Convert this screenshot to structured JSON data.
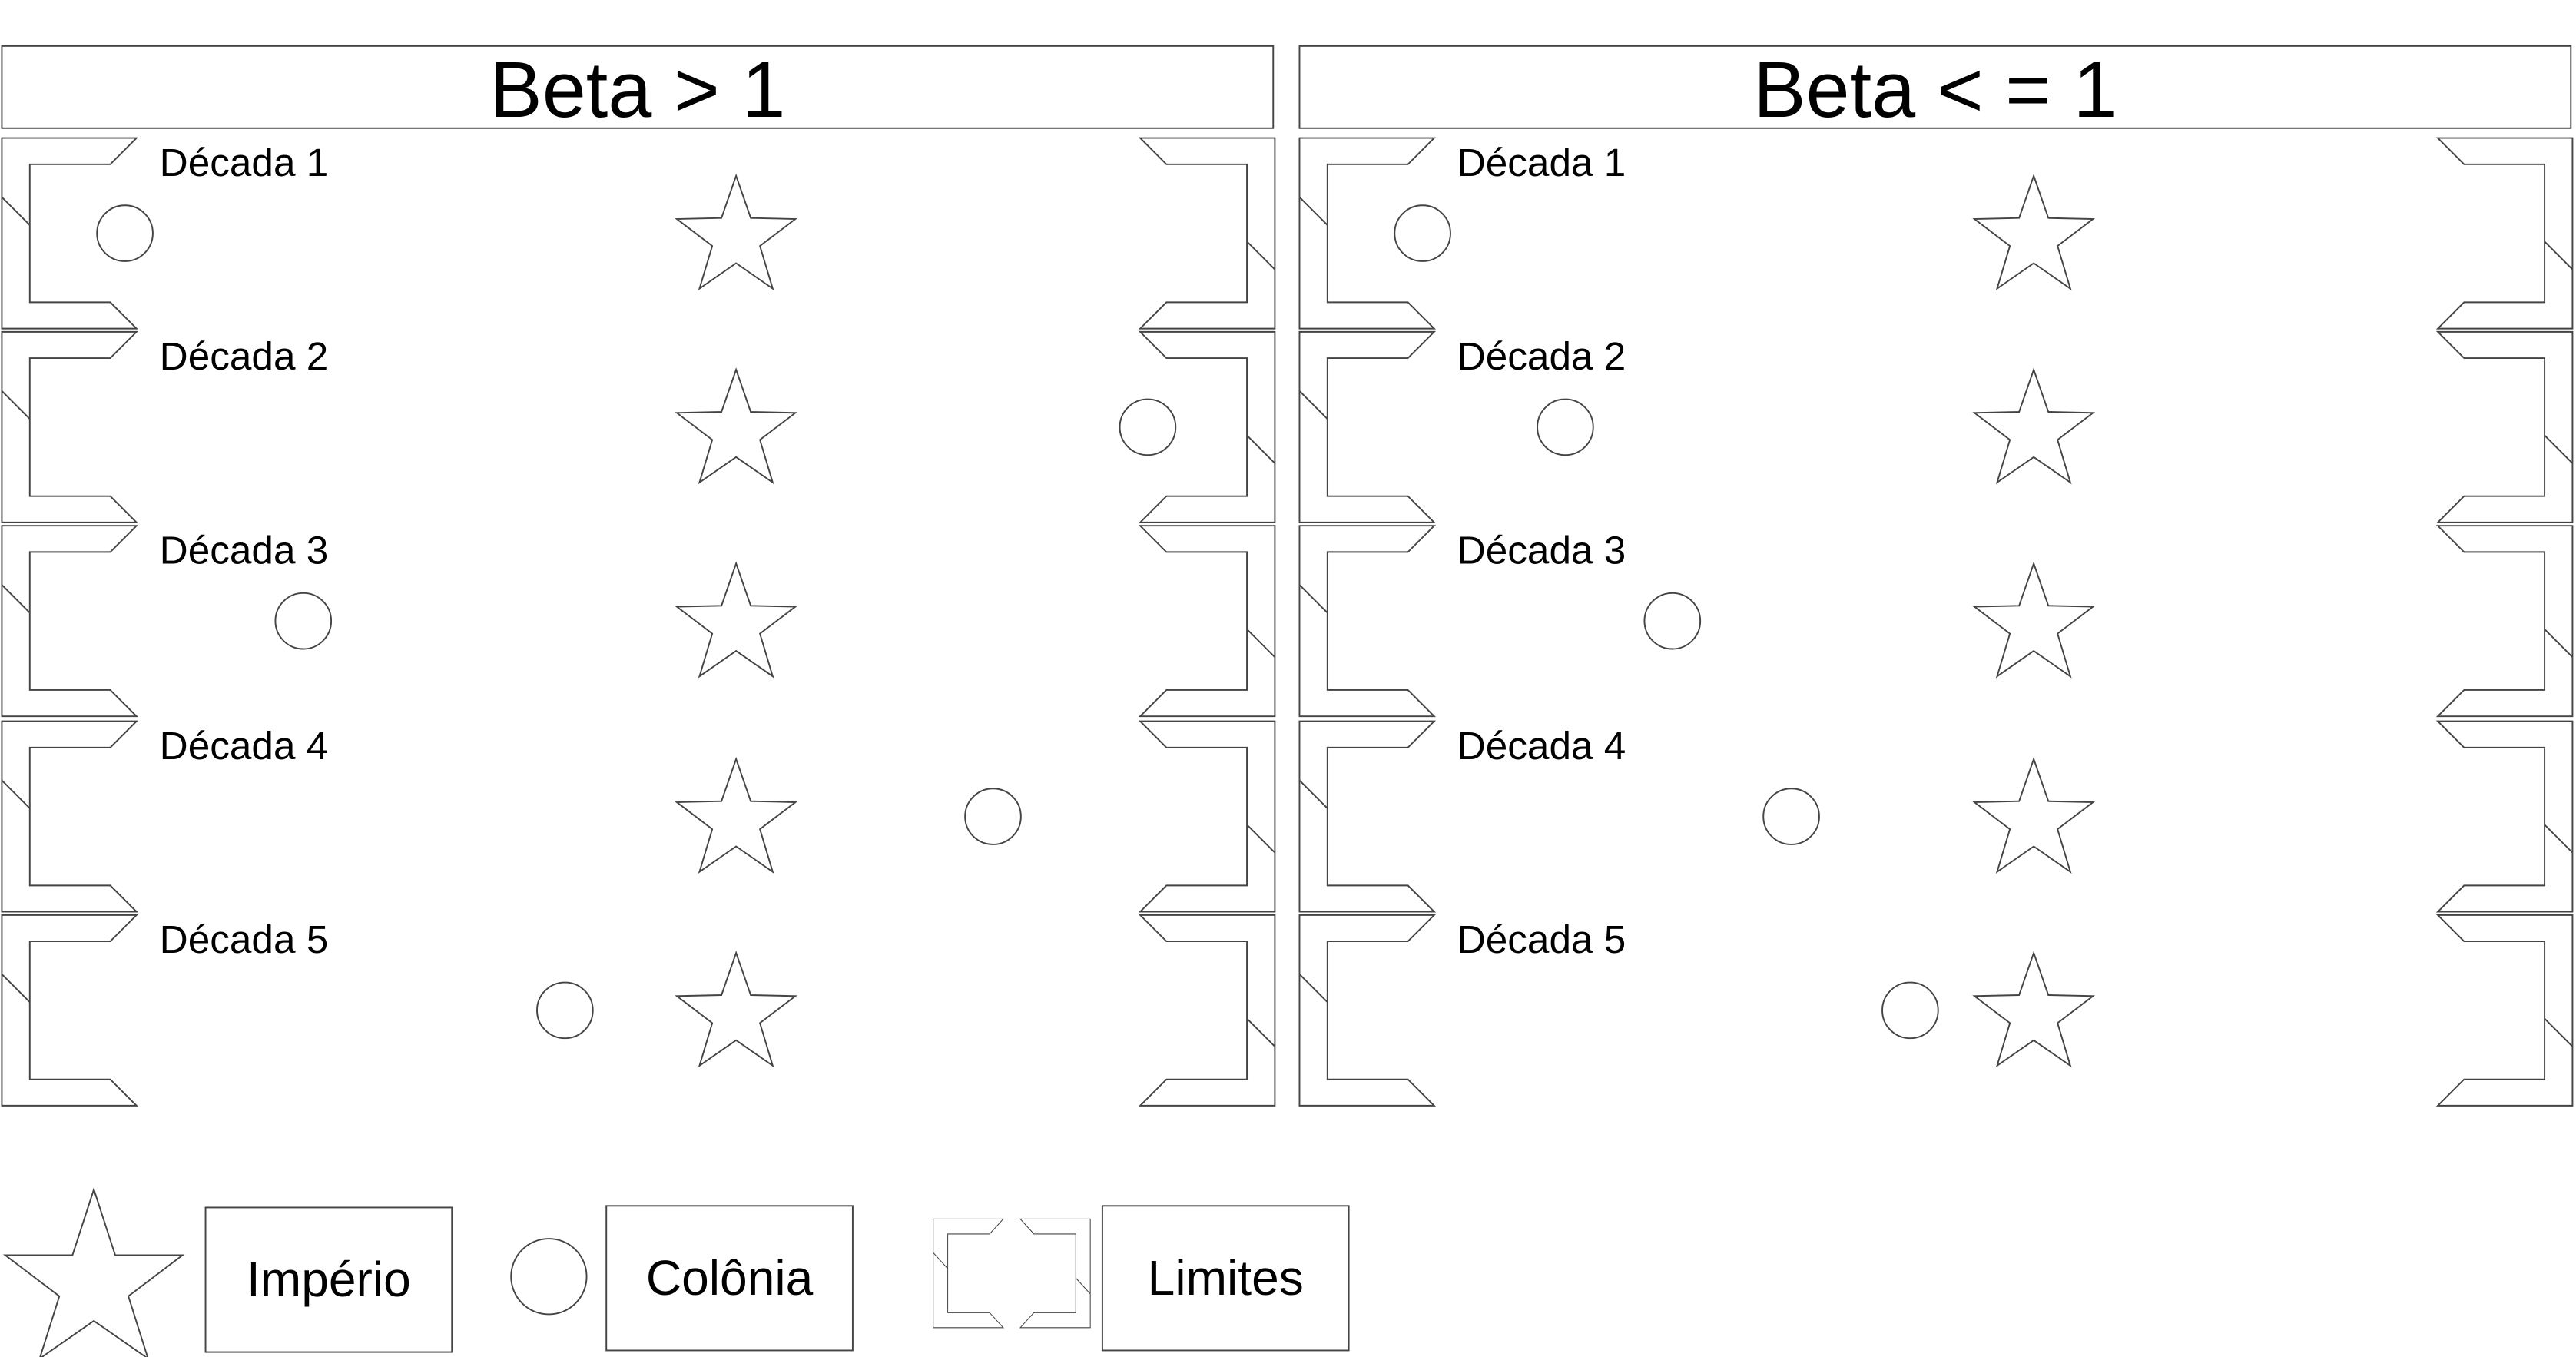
{
  "panels": [
    {
      "title": "Beta > 1",
      "rows": [
        {
          "label": "Década 1",
          "colony_pos": 0.08
        },
        {
          "label": "Década 2",
          "colony_pos": 0.94
        },
        {
          "label": "Década 3",
          "colony_pos": 0.23
        },
        {
          "label": "Década 4",
          "colony_pos": 0.81
        },
        {
          "label": "Década 5",
          "colony_pos": 0.45
        }
      ]
    },
    {
      "title": "Beta < = 1",
      "rows": [
        {
          "label": "Década 1",
          "colony_pos": 0.08
        },
        {
          "label": "Década 2",
          "colony_pos": 0.2
        },
        {
          "label": "Década 3",
          "colony_pos": 0.29
        },
        {
          "label": "Década 4",
          "colony_pos": 0.39
        },
        {
          "label": "Década 5",
          "colony_pos": 0.49
        }
      ]
    }
  ],
  "legend": {
    "empire": "Império",
    "colony": "Colônia",
    "limits": "Limites"
  },
  "icons": {
    "empire": "star-icon",
    "colony": "circle-icon",
    "limits": "bracket-pair-icon"
  },
  "colors": {
    "stroke": "#444444",
    "text": "#000000"
  }
}
